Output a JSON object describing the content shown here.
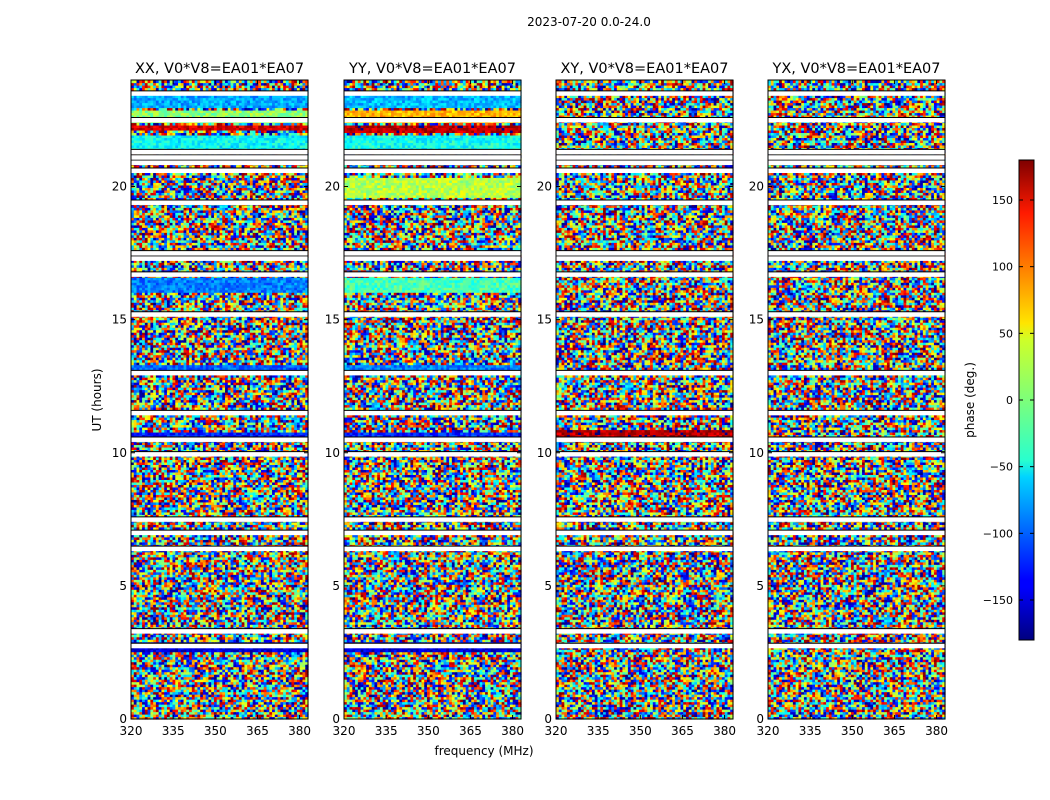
{
  "chart_data": {
    "type": "heatmap",
    "suptitle": "2023-07-20 0.0-24.0",
    "xlabel": "frequency (MHz)",
    "ylabel": "UT (hours)",
    "xlim": [
      320,
      383
    ],
    "ylim": [
      0,
      24
    ],
    "xticks": [
      320,
      335,
      350,
      365,
      380
    ],
    "yticks": [
      0,
      5,
      10,
      15,
      20
    ],
    "colorbar": {
      "label": "phase (deg.)",
      "range": [
        -180,
        180
      ],
      "ticks": [
        -150,
        -100,
        -50,
        0,
        50,
        100,
        150
      ],
      "tick_labels": [
        "−150",
        "−100",
        "−50",
        "0",
        "50",
        "100",
        "150"
      ]
    },
    "flagged_ut_hours": [
      2.75,
      3.3,
      6.4,
      7.0,
      7.5,
      9.95,
      10.5,
      11.5,
      13.0,
      15.2,
      16.7,
      17.3,
      17.5,
      19.4,
      20.6,
      20.9,
      21.1,
      21.3,
      22.5,
      23.5
    ],
    "panels": [
      {
        "title": "XX, V0*V8=EA01*EA07",
        "bands": [
          {
            "ut": [
              21.4,
              21.9
            ],
            "phase": -45
          },
          {
            "ut": [
              22.1,
              22.3
            ],
            "phase": 150
          },
          {
            "ut": [
              22.4,
              22.9
            ],
            "phase": 5
          },
          {
            "ut": [
              23.0,
              23.6
            ],
            "phase": -75
          },
          {
            "ut": [
              10.5,
              10.8
            ],
            "phase": -125
          },
          {
            "ut": [
              13.0,
              13.3
            ],
            "phase": -100
          },
          {
            "ut": [
              16.0,
              16.6
            ],
            "phase": -90
          },
          {
            "ut": [
              2.5,
              2.9
            ],
            "phase": -150
          }
        ]
      },
      {
        "title": "YY, V0*V8=EA01*EA07",
        "bands": [
          {
            "ut": [
              21.4,
              21.9
            ],
            "phase": -40
          },
          {
            "ut": [
              22.0,
              22.3
            ],
            "phase": 160
          },
          {
            "ut": [
              22.4,
              22.9
            ],
            "phase": 70
          },
          {
            "ut": [
              23.0,
              23.6
            ],
            "phase": -70
          },
          {
            "ut": [
              10.5,
              10.8
            ],
            "phase": -120
          },
          {
            "ut": [
              13.0,
              13.3
            ],
            "phase": -90
          },
          {
            "ut": [
              16.0,
              16.6
            ],
            "phase": -20
          },
          {
            "ut": [
              19.6,
              20.3
            ],
            "phase": 20
          },
          {
            "ut": [
              2.5,
              2.9
            ],
            "phase": -150
          }
        ]
      },
      {
        "title": "XY, V0*V8=EA01*EA07",
        "bands": [
          {
            "ut": [
              10.5,
              10.9
            ],
            "phase": 160
          }
        ]
      },
      {
        "title": "YX, V0*V8=EA01*EA07",
        "bands": []
      }
    ]
  },
  "colors": {
    "flagged": "#ffffff",
    "axis": "#000000"
  }
}
